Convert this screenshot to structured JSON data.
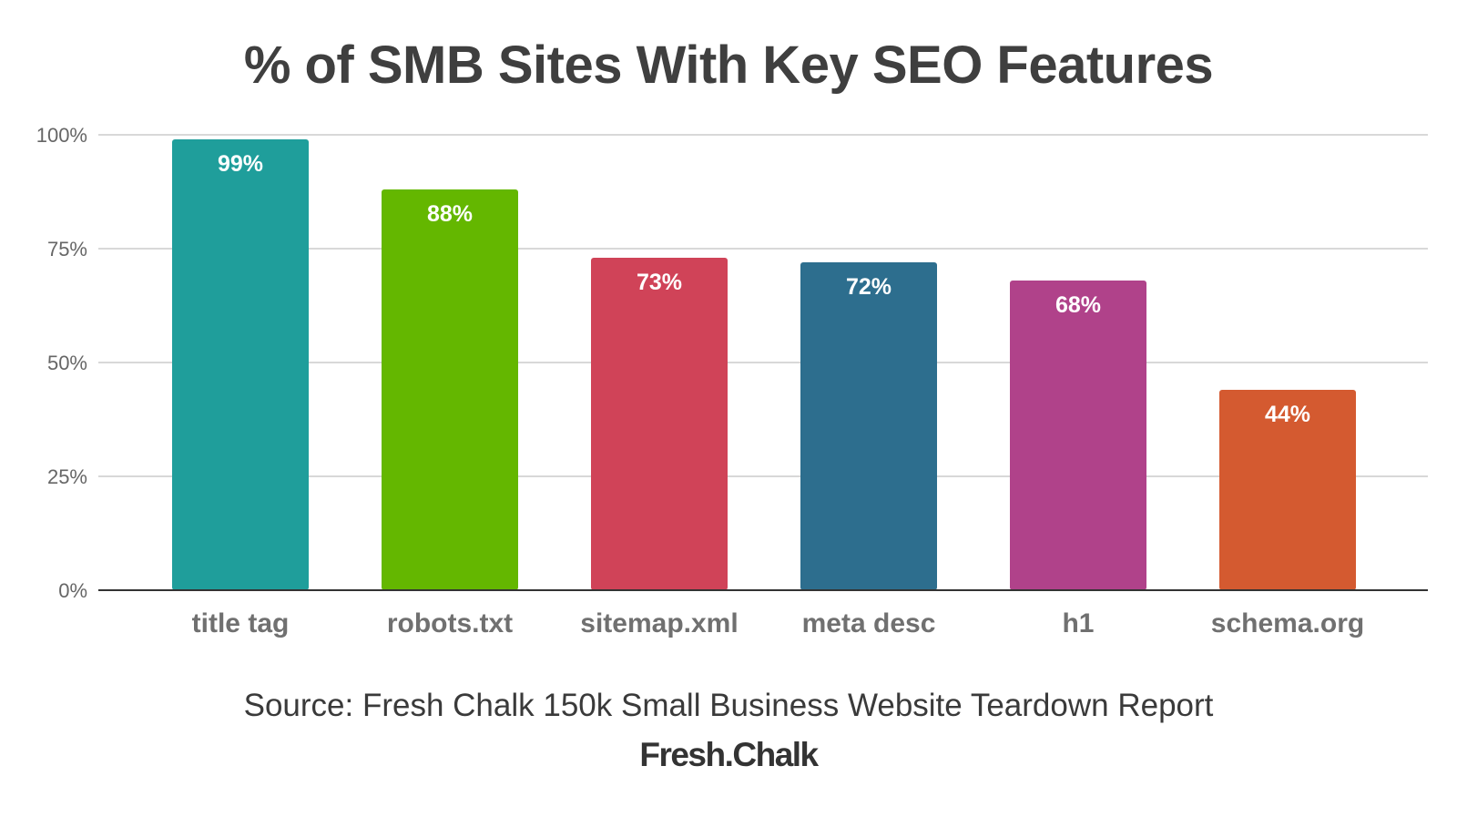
{
  "chart_data": {
    "type": "bar",
    "title": "% of SMB Sites With Key SEO Features",
    "categories": [
      "title tag",
      "robots.txt",
      "sitemap.xml",
      "meta desc",
      "h1",
      "schema.org"
    ],
    "values": [
      99,
      88,
      73,
      72,
      68,
      44
    ],
    "data_labels": [
      "99%",
      "88%",
      "73%",
      "72%",
      "68%",
      "44%"
    ],
    "bar_colors": [
      "#1f9e9b",
      "#64b700",
      "#d04358",
      "#2d6e8e",
      "#b0428a",
      "#d45a30"
    ],
    "ylim": [
      0,
      100
    ],
    "yticks": [
      0,
      25,
      50,
      75,
      100
    ],
    "ytick_labels": [
      "0%",
      "25%",
      "50%",
      "75%",
      "100%"
    ],
    "xlabel": "",
    "ylabel": "",
    "grid": true,
    "legend": "none"
  },
  "source_note": "Source: Fresh Chalk 150k Small Business Website Teardown Report",
  "brand": "Fresh.Chalk"
}
